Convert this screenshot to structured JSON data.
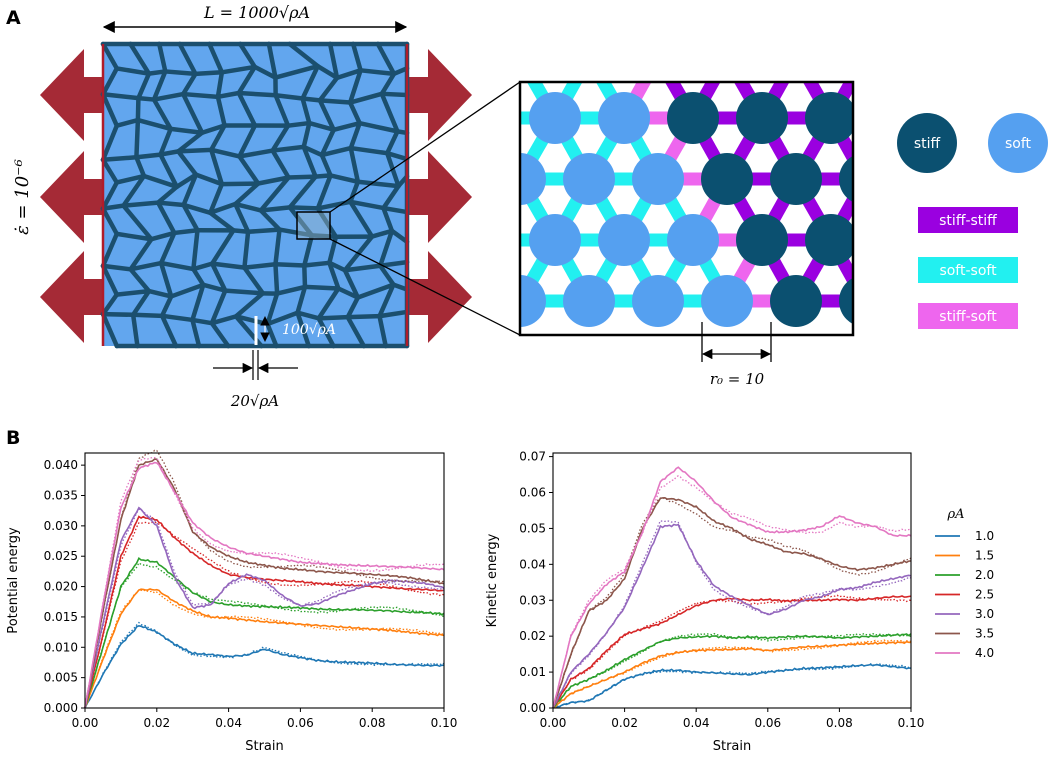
{
  "panel_a": {
    "label": "A",
    "length_label": "L = 1000√ρA",
    "strain_rate_label": "ε̇ = 10⁻⁶",
    "grain_label": "100√ρA",
    "boundary_label": "20√ρA",
    "r0_label": "r₀ = 10",
    "legend": {
      "stiff": "stiff",
      "soft": "soft",
      "stiff_stiff": "stiff-stiff",
      "soft_soft": "soft-soft",
      "stiff_soft": "stiff-soft"
    },
    "colors": {
      "stiff": "#0b5070",
      "soft": "#55a0f0",
      "arrow": "#a52a36",
      "stiff_stiff": "#9a00e0",
      "soft_soft": "#22f0f0",
      "stiff_soft": "#ee66ee",
      "network": "#1b4f6e",
      "grain": "#62a6ee"
    }
  },
  "panel_b": {
    "label": "B",
    "legend_title": "ρA",
    "series_names": [
      "1.0",
      "1.5",
      "2.0",
      "2.5",
      "3.0",
      "3.5",
      "4.0"
    ],
    "series_colors": [
      "#1f77b4",
      "#ff7f0e",
      "#2ca02c",
      "#d62728",
      "#9467bd",
      "#8c564b",
      "#e377c2"
    ]
  },
  "chart_data": [
    {
      "type": "line",
      "title": "",
      "xlabel": "Strain",
      "ylabel": "Potential energy",
      "xlim": [
        0,
        0.1
      ],
      "ylim": [
        0,
        0.042
      ],
      "xticks": [
        0,
        0.02,
        0.04,
        0.06,
        0.08,
        0.1
      ],
      "xtick_labels": [
        "0.00",
        "0.02",
        "0.04",
        "0.06",
        "0.08",
        "0.10"
      ],
      "yticks": [
        0,
        0.005,
        0.01,
        0.015,
        0.02,
        0.025,
        0.03,
        0.035,
        0.04
      ],
      "ytick_labels": [
        "0.000",
        "0.005",
        "0.010",
        "0.015",
        "0.020",
        "0.025",
        "0.030",
        "0.035",
        "0.040"
      ],
      "x": [
        0,
        0.005,
        0.01,
        0.015,
        0.02,
        0.025,
        0.03,
        0.035,
        0.04,
        0.045,
        0.05,
        0.055,
        0.06,
        0.065,
        0.07,
        0.075,
        0.08,
        0.085,
        0.09,
        0.095,
        0.1
      ],
      "series": [
        {
          "name": "1.0",
          "values": [
            0,
            0.0055,
            0.0105,
            0.0136,
            0.0125,
            0.0105,
            0.009,
            0.0088,
            0.0085,
            0.0087,
            0.0097,
            0.0088,
            0.0083,
            0.0078,
            0.0076,
            0.0075,
            0.0074,
            0.0072,
            0.0071,
            0.007,
            0.007
          ]
        },
        {
          "name": "1.5",
          "values": [
            0,
            0.008,
            0.0155,
            0.0195,
            0.0195,
            0.0175,
            0.016,
            0.015,
            0.0148,
            0.0145,
            0.0142,
            0.014,
            0.0138,
            0.0136,
            0.0134,
            0.0132,
            0.013,
            0.0128,
            0.0125,
            0.0122,
            0.012
          ]
        },
        {
          "name": "2.0",
          "values": [
            0,
            0.01,
            0.02,
            0.0245,
            0.024,
            0.0215,
            0.019,
            0.0175,
            0.017,
            0.0168,
            0.0167,
            0.0166,
            0.0165,
            0.0163,
            0.0162,
            0.0162,
            0.0161,
            0.016,
            0.0158,
            0.0157,
            0.0155
          ]
        },
        {
          "name": "2.5",
          "values": [
            0,
            0.012,
            0.025,
            0.0315,
            0.031,
            0.028,
            0.0255,
            0.0235,
            0.022,
            0.0215,
            0.0212,
            0.021,
            0.0208,
            0.0205,
            0.0203,
            0.0202,
            0.02,
            0.0198,
            0.0196,
            0.0195,
            0.0193
          ]
        },
        {
          "name": "3.0",
          "values": [
            0,
            0.014,
            0.0275,
            0.033,
            0.03,
            0.0215,
            0.0165,
            0.017,
            0.0205,
            0.022,
            0.021,
            0.0185,
            0.0168,
            0.0172,
            0.0185,
            0.0195,
            0.0205,
            0.021,
            0.0208,
            0.0205,
            0.0198
          ]
        },
        {
          "name": "3.5",
          "values": [
            0,
            0.016,
            0.031,
            0.04,
            0.041,
            0.036,
            0.029,
            0.0265,
            0.025,
            0.024,
            0.0235,
            0.023,
            0.0228,
            0.0225,
            0.0223,
            0.0222,
            0.022,
            0.0218,
            0.0215,
            0.021,
            0.0205
          ]
        },
        {
          "name": "4.0",
          "values": [
            0,
            0.017,
            0.033,
            0.0395,
            0.0405,
            0.0355,
            0.0305,
            0.028,
            0.0265,
            0.0255,
            0.025,
            0.0245,
            0.024,
            0.0238,
            0.0236,
            0.0235,
            0.0234,
            0.0233,
            0.0232,
            0.023,
            0.0228
          ]
        }
      ]
    },
    {
      "type": "line",
      "title": "",
      "xlabel": "Strain",
      "ylabel": "Kinetic energy",
      "xlim": [
        0,
        0.1
      ],
      "ylim": [
        0,
        0.071
      ],
      "xticks": [
        0,
        0.02,
        0.04,
        0.06,
        0.08,
        0.1
      ],
      "xtick_labels": [
        "0.00",
        "0.02",
        "0.04",
        "0.06",
        "0.08",
        "0.10"
      ],
      "yticks": [
        0,
        0.01,
        0.02,
        0.03,
        0.04,
        0.05,
        0.06,
        0.07
      ],
      "ytick_labels": [
        "0.00",
        "0.01",
        "0.02",
        "0.03",
        "0.04",
        "0.05",
        "0.06",
        "0.07"
      ],
      "x": [
        0,
        0.005,
        0.01,
        0.015,
        0.02,
        0.025,
        0.03,
        0.035,
        0.04,
        0.045,
        0.05,
        0.055,
        0.06,
        0.065,
        0.07,
        0.075,
        0.08,
        0.085,
        0.09,
        0.095,
        0.1
      ],
      "series": [
        {
          "name": "1.0",
          "values": [
            0,
            0.0015,
            0.002,
            0.005,
            0.008,
            0.0095,
            0.0105,
            0.0105,
            0.01,
            0.0098,
            0.0095,
            0.0093,
            0.01,
            0.0105,
            0.011,
            0.0112,
            0.0115,
            0.0118,
            0.012,
            0.0115,
            0.011
          ]
        },
        {
          "name": "1.5",
          "values": [
            0,
            0.004,
            0.006,
            0.008,
            0.01,
            0.0125,
            0.0145,
            0.0155,
            0.016,
            0.0162,
            0.0163,
            0.0165,
            0.016,
            0.0165,
            0.017,
            0.0172,
            0.0175,
            0.0178,
            0.018,
            0.0182,
            0.0183
          ]
        },
        {
          "name": "2.0",
          "values": [
            0,
            0.006,
            0.008,
            0.0105,
            0.0135,
            0.016,
            0.0185,
            0.0195,
            0.0198,
            0.02,
            0.0195,
            0.0198,
            0.0195,
            0.0198,
            0.02,
            0.0198,
            0.0195,
            0.0198,
            0.02,
            0.0203,
            0.0205
          ]
        },
        {
          "name": "2.5",
          "values": [
            0,
            0.008,
            0.011,
            0.016,
            0.0205,
            0.022,
            0.0235,
            0.026,
            0.0285,
            0.03,
            0.0305,
            0.03,
            0.0302,
            0.0298,
            0.03,
            0.03,
            0.0302,
            0.03,
            0.0305,
            0.031,
            0.031
          ]
        },
        {
          "name": "3.0",
          "values": [
            0,
            0.01,
            0.015,
            0.021,
            0.028,
            0.039,
            0.0505,
            0.051,
            0.041,
            0.034,
            0.031,
            0.0285,
            0.026,
            0.0275,
            0.03,
            0.031,
            0.033,
            0.0335,
            0.035,
            0.036,
            0.037
          ]
        },
        {
          "name": "3.5",
          "values": [
            0,
            0.015,
            0.027,
            0.03,
            0.036,
            0.05,
            0.0585,
            0.058,
            0.056,
            0.052,
            0.05,
            0.047,
            0.0455,
            0.0435,
            0.043,
            0.0415,
            0.0395,
            0.0385,
            0.039,
            0.04,
            0.041
          ]
        },
        {
          "name": "4.0",
          "values": [
            0,
            0.02,
            0.029,
            0.0345,
            0.038,
            0.049,
            0.063,
            0.067,
            0.063,
            0.0575,
            0.053,
            0.051,
            0.049,
            0.049,
            0.0495,
            0.0505,
            0.0535,
            0.0515,
            0.0505,
            0.048,
            0.048
          ]
        }
      ]
    }
  ]
}
